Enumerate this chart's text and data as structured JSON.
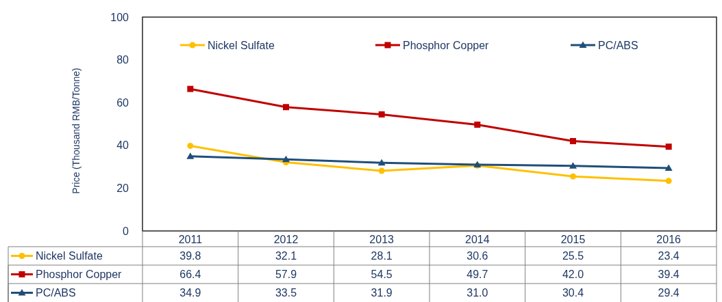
{
  "chart_data": {
    "type": "line",
    "ylabel": "Price (Thousand RMB/Tonne)",
    "categories": [
      "2011",
      "2012",
      "2013",
      "2014",
      "2015",
      "2016"
    ],
    "ylim": [
      0,
      100
    ],
    "yticks": [
      0,
      20,
      40,
      60,
      80,
      100
    ],
    "grid": false,
    "legend": "top",
    "series": [
      {
        "name": "Nickel Sulfate",
        "color": "#ffc000",
        "marker": "circle",
        "values": [
          39.8,
          32.1,
          28.1,
          30.6,
          25.5,
          23.4
        ],
        "value_labels": [
          "39.8",
          "32.1",
          "28.1",
          "30.6",
          "25.5",
          "23.4"
        ]
      },
      {
        "name": "Phosphor Copper",
        "color": "#c00000",
        "marker": "square",
        "values": [
          66.4,
          57.9,
          54.5,
          49.7,
          42.0,
          39.4
        ],
        "value_labels": [
          "66.4",
          "57.9",
          "54.5",
          "49.7",
          "42.0",
          "39.4"
        ]
      },
      {
        "name": "PC/ABS",
        "color": "#1f4e79",
        "marker": "triangle",
        "values": [
          34.9,
          33.5,
          31.9,
          31.0,
          30.4,
          29.4
        ],
        "value_labels": [
          "34.9",
          "33.5",
          "31.9",
          "31.0",
          "30.4",
          "29.4"
        ]
      }
    ]
  }
}
